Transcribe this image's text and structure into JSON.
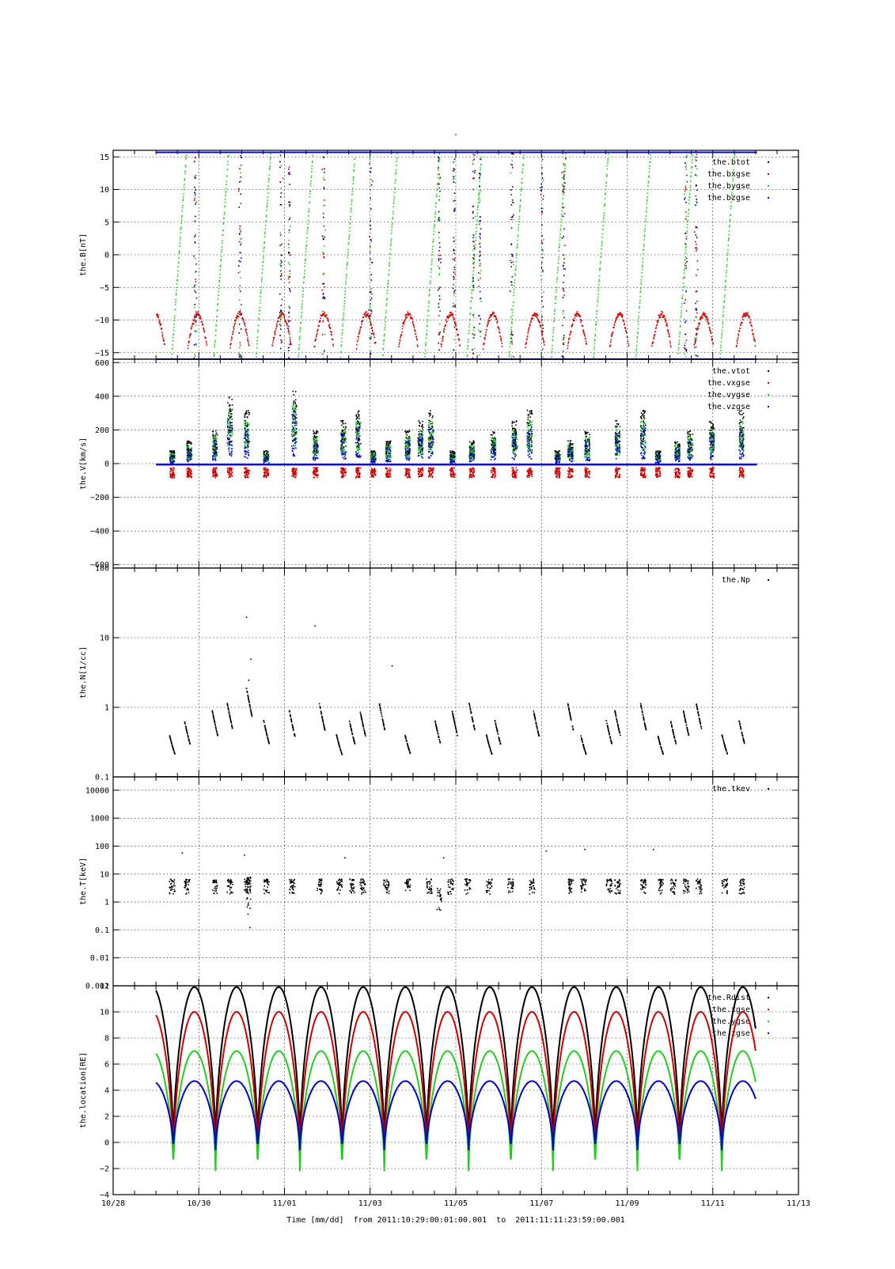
{
  "header": {
    "title": "-"
  },
  "x_axis": {
    "ticks": [
      "10/28",
      "10/30",
      "11/01",
      "11/03",
      "11/05",
      "11/07",
      "11/09",
      "11/11",
      "11/13"
    ],
    "caption": "Time [mm/dd]  from 2011:10:29:00:01:00.001  to  2011:11:11:23:59:00.001",
    "range_days": [
      0,
      16
    ],
    "data_start_day": 1.0,
    "data_end_day": 15.0
  },
  "colors": {
    "black": "#000000",
    "red": "#cc0000",
    "green": "#22cc22",
    "blue": "#0000cc"
  },
  "chart_data": [
    {
      "type": "scatter",
      "ylabel": "the.B[nT]",
      "ylim": [
        -16,
        16
      ],
      "yticks": [
        15,
        10,
        5,
        0,
        -5,
        -10,
        -15
      ],
      "ytick_labels": [
        "15",
        "10",
        "5",
        "0",
        "−5",
        "−10",
        "−15"
      ],
      "scale": "linear",
      "grid": true,
      "legend": "top-right",
      "series": [
        {
          "name": "the.btot",
          "color": "#000000"
        },
        {
          "name": "the.bxgse",
          "color": "#cc0000"
        },
        {
          "name": "the.bygse",
          "color": "#22cc22"
        },
        {
          "name": "the.bzgse",
          "color": "#0000cc"
        }
      ]
    },
    {
      "type": "scatter",
      "ylabel": "the.V[km/s]",
      "ylim": [
        -620,
        620
      ],
      "yticks": [
        600,
        400,
        200,
        0,
        -200,
        -400,
        -600
      ],
      "ytick_labels": [
        "600",
        "400",
        "200",
        "0",
        "−200",
        "−400",
        "−600"
      ],
      "scale": "linear",
      "grid": true,
      "legend": "top-right",
      "series": [
        {
          "name": "the.vtot",
          "color": "#000000"
        },
        {
          "name": "the.vxgse",
          "color": "#cc0000"
        },
        {
          "name": "the.vygse",
          "color": "#22cc22"
        },
        {
          "name": "the.vzgse",
          "color": "#0000cc"
        }
      ]
    },
    {
      "type": "scatter",
      "ylabel": "the.N[1/cc]",
      "ylim": [
        0.1,
        100
      ],
      "yticks": [
        100,
        10,
        1,
        0.1
      ],
      "ytick_labels": [
        "100",
        "10",
        "1",
        "0.1"
      ],
      "scale": "log",
      "grid": true,
      "legend": "top-right",
      "series": [
        {
          "name": "the.Np",
          "color": "#000000"
        }
      ]
    },
    {
      "type": "scatter",
      "ylabel": "the.T[keV]",
      "ylim": [
        0.001,
        30000
      ],
      "yticks": [
        10000,
        1000,
        100,
        10,
        1,
        0.1,
        0.01,
        0.001
      ],
      "ytick_labels": [
        "10000",
        "1000",
        "100",
        "10",
        "1",
        "0.1",
        "0.01",
        "0.001"
      ],
      "scale": "log",
      "grid": true,
      "legend": "top-right",
      "series": [
        {
          "name": "the.tkev",
          "color": "#000000"
        }
      ]
    },
    {
      "type": "line",
      "ylabel": "the.location[RE]",
      "ylim": [
        -4,
        12
      ],
      "yticks": [
        12,
        10,
        8,
        6,
        4,
        2,
        0,
        -2,
        -4
      ],
      "ytick_labels": [
        "12",
        "10",
        "8",
        "6",
        "4",
        "2",
        "0",
        "−2",
        "−4"
      ],
      "scale": "linear",
      "grid": true,
      "legend": "top-right",
      "orbit_period_days": 0.985,
      "series": [
        {
          "name": "the.Rdist",
          "color": "#000000",
          "max": 11.9,
          "min": -0.5
        },
        {
          "name": "the.xgse",
          "color": "#cc0000",
          "max": 10.0,
          "min": -1.6
        },
        {
          "name": "the.ygse",
          "color": "#22cc22",
          "max": 7.0,
          "min": -2.2
        },
        {
          "name": "the.zgse",
          "color": "#0000cc",
          "max": 4.7,
          "min": -0.6
        }
      ]
    }
  ]
}
